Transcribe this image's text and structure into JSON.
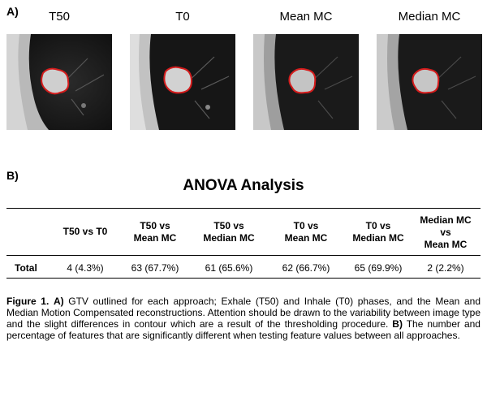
{
  "panel_a_label": "A)",
  "panel_b_label": "B)",
  "images": [
    {
      "title": "T50"
    },
    {
      "title": "T0"
    },
    {
      "title": "Mean MC"
    },
    {
      "title": "Median MC"
    }
  ],
  "table": {
    "title": "ANOVA Analysis",
    "columns": [
      {
        "line1": "T50 vs T0",
        "line2": "",
        "line3": ""
      },
      {
        "line1": "T50 vs",
        "line2": "Mean MC",
        "line3": ""
      },
      {
        "line1": "T50 vs",
        "line2": "Median MC",
        "line3": ""
      },
      {
        "line1": "T0 vs",
        "line2": "Mean MC",
        "line3": ""
      },
      {
        "line1": "T0 vs",
        "line2": "Median MC",
        "line3": ""
      },
      {
        "line1": "Median MC",
        "line2": "vs",
        "line3": "Mean MC"
      }
    ],
    "rows": [
      {
        "label": "Total",
        "values": [
          "4 (4.3%)",
          "63 (67.7%)",
          "61 (65.6%)",
          "62 (66.7%)",
          "65 (69.9%)",
          "2 (2.2%)"
        ]
      }
    ]
  },
  "caption": {
    "fig_label": "Figure 1.",
    "a_label": "A)",
    "a_text": "GTV outlined for each approach; Exhale (T50) and Inhale (T0) phases, and the Mean and Median Motion Compensated reconstructions. Attention should be drawn to the variability between image type and the slight differences in contour which are a result of the thresholding procedure.",
    "b_label": "B)",
    "b_text": "The number and percentage of features that are significantly different when testing feature values between all approaches."
  }
}
